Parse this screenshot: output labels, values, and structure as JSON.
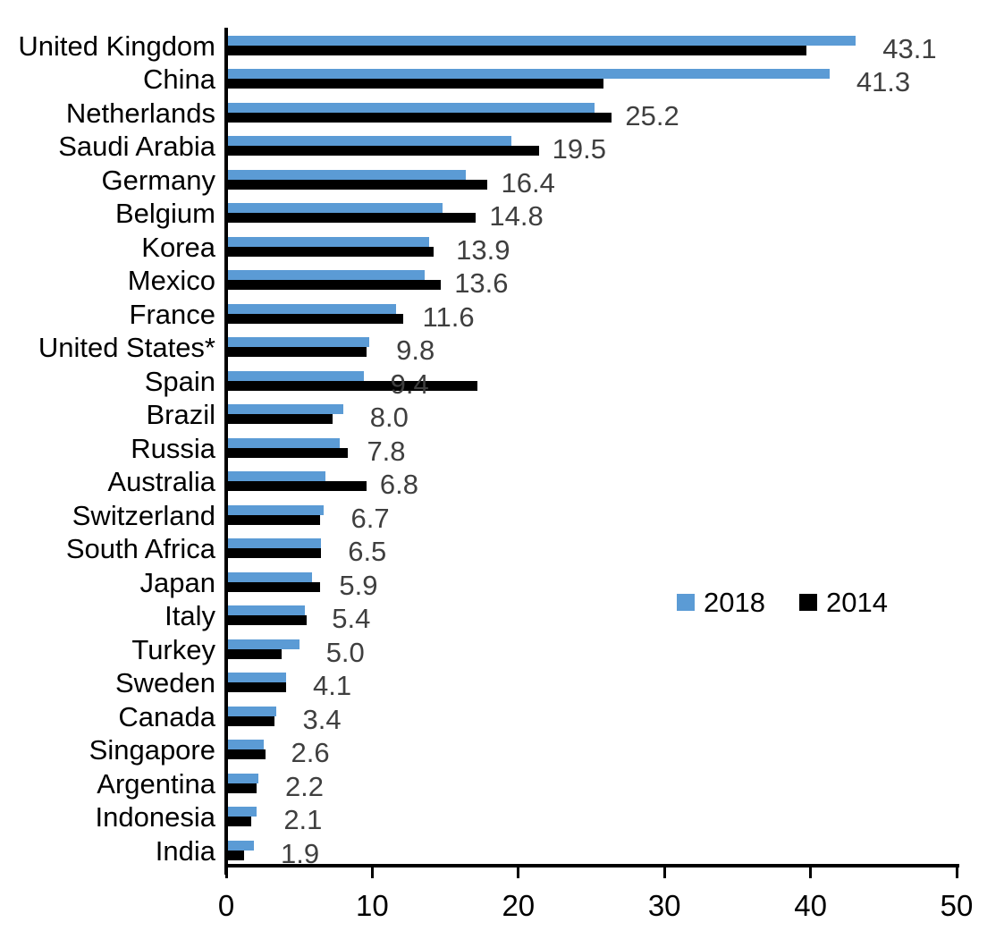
{
  "chart_data": {
    "type": "bar",
    "orientation": "horizontal",
    "title": "",
    "xlabel": "",
    "ylabel": "",
    "categories": [
      "United Kingdom",
      "China",
      "Netherlands",
      "Saudi Arabia",
      "Germany",
      "Belgium",
      "Korea",
      "Mexico",
      "France",
      "United States*",
      "Spain",
      "Brazil",
      "Russia",
      "Australia",
      "Switzerland",
      "South Africa",
      "Japan",
      "Italy",
      "Turkey",
      "Sweden",
      "Canada",
      "Singapore",
      "Argentina",
      "Indonesia",
      "India"
    ],
    "series": [
      {
        "name": "2018",
        "color": "#5B9BD5",
        "values": [
          43.1,
          41.3,
          25.2,
          19.5,
          16.4,
          14.8,
          13.9,
          13.6,
          11.6,
          9.8,
          9.4,
          8.0,
          7.8,
          6.8,
          6.7,
          6.5,
          5.9,
          5.4,
          5.0,
          4.1,
          3.4,
          2.6,
          2.2,
          2.1,
          1.9
        ]
      },
      {
        "name": "2014",
        "color": "#000000",
        "values": [
          39.7,
          25.8,
          26.4,
          21.4,
          17.9,
          17.1,
          14.2,
          14.7,
          12.1,
          9.6,
          17.2,
          7.3,
          8.3,
          9.6,
          6.4,
          6.5,
          6.4,
          5.5,
          3.8,
          4.1,
          3.3,
          2.7,
          2.1,
          1.7,
          1.2
        ]
      }
    ],
    "data_labels": [
      "43.1",
      "41.3",
      "25.2",
      "19.5",
      "16.4",
      "14.8",
      "13.9",
      "13.6",
      "11.6",
      "9.8",
      "9.4",
      "8.0",
      "7.8",
      "6.8",
      "6.7",
      "6.5",
      "5.9",
      "5.4",
      "5.0",
      "4.1",
      "3.4",
      "2.6",
      "2.2",
      "2.1",
      "1.9"
    ],
    "data_labels_series": "2018",
    "data_label_color": "#3F3F3F",
    "x_ticks": [
      "0",
      "10",
      "20",
      "30",
      "40",
      "50"
    ],
    "x_tick_values": [
      0,
      10,
      20,
      30,
      40,
      50
    ],
    "xlim": [
      0,
      50
    ],
    "grid": false,
    "legend": {
      "position": "center-right",
      "entries": [
        "2018",
        "2014"
      ]
    }
  }
}
